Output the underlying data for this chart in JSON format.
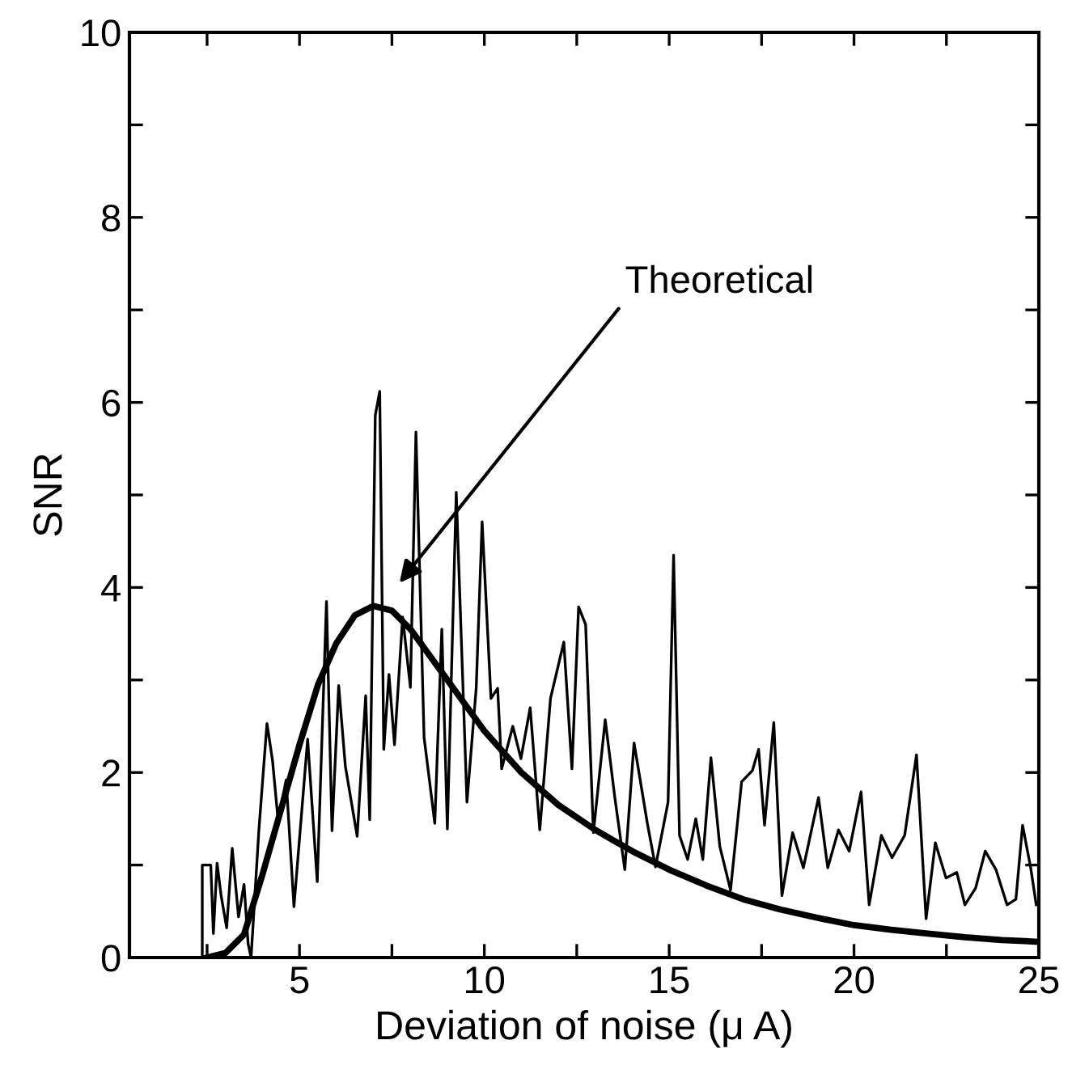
{
  "chart_data": {
    "type": "line",
    "xlabel": "Deviation of noise (μ A)",
    "ylabel": "SNR",
    "xlim": [
      0.4,
      25
    ],
    "ylim": [
      0,
      10
    ],
    "xticks": [
      {
        "value": 2.5,
        "label": null
      },
      5,
      {
        "value": 7.5,
        "label": null
      },
      10,
      {
        "value": 12.5,
        "label": null
      },
      15,
      {
        "value": 17.5,
        "label": null
      },
      20,
      {
        "value": 22.5,
        "label": null
      },
      25
    ],
    "yticks": [
      0,
      {
        "value": 1,
        "label": null
      },
      2,
      {
        "value": 3,
        "label": null
      },
      4,
      {
        "value": 5,
        "label": null
      },
      6,
      {
        "value": 7,
        "label": null
      },
      8,
      {
        "value": 9,
        "label": null
      },
      10
    ],
    "grid": false,
    "marker": "none",
    "annotations": [
      "Theoretical"
    ],
    "series": [
      {
        "color": "#000000",
        "line_style": "solid",
        "x": [
          2.0,
          2.37,
          2.37,
          2.6,
          2.67,
          2.77,
          2.88,
          3.03,
          3.18,
          3.35,
          3.5,
          3.61,
          3.69,
          3.9,
          4.12,
          4.27,
          4.42,
          4.64,
          4.85,
          5.22,
          5.48,
          5.73,
          5.88,
          6.06,
          6.24,
          6.56,
          6.79,
          6.9,
          7.05,
          7.17,
          7.28,
          7.42,
          7.57,
          7.79,
          8.0,
          8.15,
          8.37,
          8.66,
          8.85,
          9.0,
          9.24,
          9.53,
          9.78,
          9.94,
          10.18,
          10.36,
          10.47,
          10.77,
          10.99,
          11.24,
          11.5,
          11.79,
          12.15,
          12.37,
          12.55,
          12.74,
          12.95,
          13.27,
          13.53,
          13.8,
          14.05,
          14.41,
          14.63,
          14.97,
          15.12,
          15.28,
          15.5,
          15.72,
          15.91,
          16.13,
          16.37,
          16.66,
          16.96,
          17.25,
          17.42,
          17.58,
          17.83,
          18.05,
          18.34,
          18.63,
          19.04,
          19.29,
          19.58,
          19.87,
          20.19,
          20.41,
          20.74,
          21.03,
          21.37,
          21.69,
          21.95,
          22.2,
          22.49,
          22.78,
          23.0,
          23.29,
          23.55,
          23.84,
          24.14,
          24.38,
          24.56,
          24.78,
          24.93
        ],
        "values": [
          0,
          0,
          1.0,
          1.0,
          0.26,
          1.02,
          0.67,
          0.32,
          1.18,
          0.44,
          0.79,
          0.15,
          0,
          1.37,
          2.53,
          2.13,
          1.49,
          1.92,
          0.55,
          2.36,
          0.82,
          3.85,
          1.37,
          2.94,
          2.07,
          1.31,
          2.83,
          1.49,
          5.86,
          6.12,
          2.25,
          3.06,
          2.3,
          3.68,
          2.92,
          5.68,
          2.38,
          1.45,
          3.55,
          1.39,
          5.03,
          1.68,
          2.91,
          4.71,
          2.8,
          2.91,
          2.04,
          2.5,
          2.15,
          2.7,
          1.38,
          2.8,
          3.41,
          2.04,
          3.79,
          3.6,
          1.35,
          2.57,
          1.73,
          0.95,
          2.32,
          1.45,
          0.98,
          1.68,
          4.35,
          1.32,
          1.06,
          1.5,
          1.06,
          2.16,
          1.2,
          0.73,
          1.9,
          2.02,
          2.25,
          1.43,
          2.54,
          0.67,
          1.35,
          0.97,
          1.73,
          0.97,
          1.38,
          1.15,
          1.79,
          0.57,
          1.32,
          1.08,
          1.32,
          2.19,
          0.42,
          1.24,
          0.86,
          0.92,
          0.57,
          0.75,
          1.15,
          0.95,
          0.57,
          0.63,
          1.43,
          0.97,
          0.57
        ]
      },
      {
        "color": "#000000",
        "line_style": "solid",
        "x": [
          2.5,
          3,
          3.5,
          4,
          4.5,
          5,
          5.5,
          6,
          6.5,
          7,
          7.5,
          8,
          9,
          10,
          11,
          12,
          13,
          14,
          15,
          16,
          17,
          18,
          19,
          20,
          21,
          22,
          23,
          24,
          25
        ],
        "values": [
          0,
          0.05,
          0.25,
          0.9,
          1.6,
          2.3,
          2.95,
          3.4,
          3.7,
          3.8,
          3.75,
          3.55,
          3.0,
          2.45,
          2.0,
          1.65,
          1.38,
          1.15,
          0.95,
          0.78,
          0.63,
          0.52,
          0.43,
          0.35,
          0.3,
          0.26,
          0.22,
          0.19,
          0.17
        ]
      }
    ]
  }
}
